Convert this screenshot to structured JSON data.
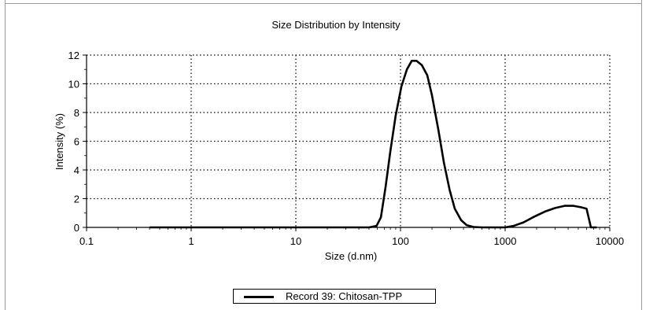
{
  "chart_data": {
    "type": "line",
    "title": "Size Distribution by Intensity",
    "xlabel": "Size (d.nm)",
    "ylabel": "Intensity (%)",
    "xscale": "log",
    "xlim": [
      0.1,
      10000
    ],
    "ylim": [
      0,
      12
    ],
    "grid": true,
    "legend_position": "bottom-center",
    "x_ticks": [
      "0.1",
      "1",
      "10",
      "100",
      "1000",
      "10000"
    ],
    "y_ticks": [
      "0",
      "2",
      "4",
      "6",
      "8",
      "10",
      "12"
    ],
    "series": [
      {
        "name": "Record 39: Chitosan-TPP",
        "color": "#000000",
        "x": [
          0.4,
          10,
          50,
          59,
          65,
          72,
          80,
          90,
          102,
          115,
          128,
          142,
          160,
          180,
          200,
          230,
          260,
          295,
          330,
          380,
          430,
          500,
          600,
          800,
          1000,
          1200,
          1500,
          1900,
          2400,
          3000,
          3700,
          4500,
          5300,
          6000,
          6600,
          7500
        ],
        "y": [
          0,
          0,
          0,
          0.1,
          0.7,
          2.8,
          5.3,
          7.8,
          9.8,
          11.0,
          11.6,
          11.6,
          11.3,
          10.6,
          9.2,
          6.8,
          4.5,
          2.6,
          1.3,
          0.5,
          0.15,
          0.03,
          0,
          0,
          0,
          0.1,
          0.35,
          0.75,
          1.1,
          1.35,
          1.5,
          1.5,
          1.4,
          1.3,
          0,
          0
        ]
      }
    ]
  }
}
